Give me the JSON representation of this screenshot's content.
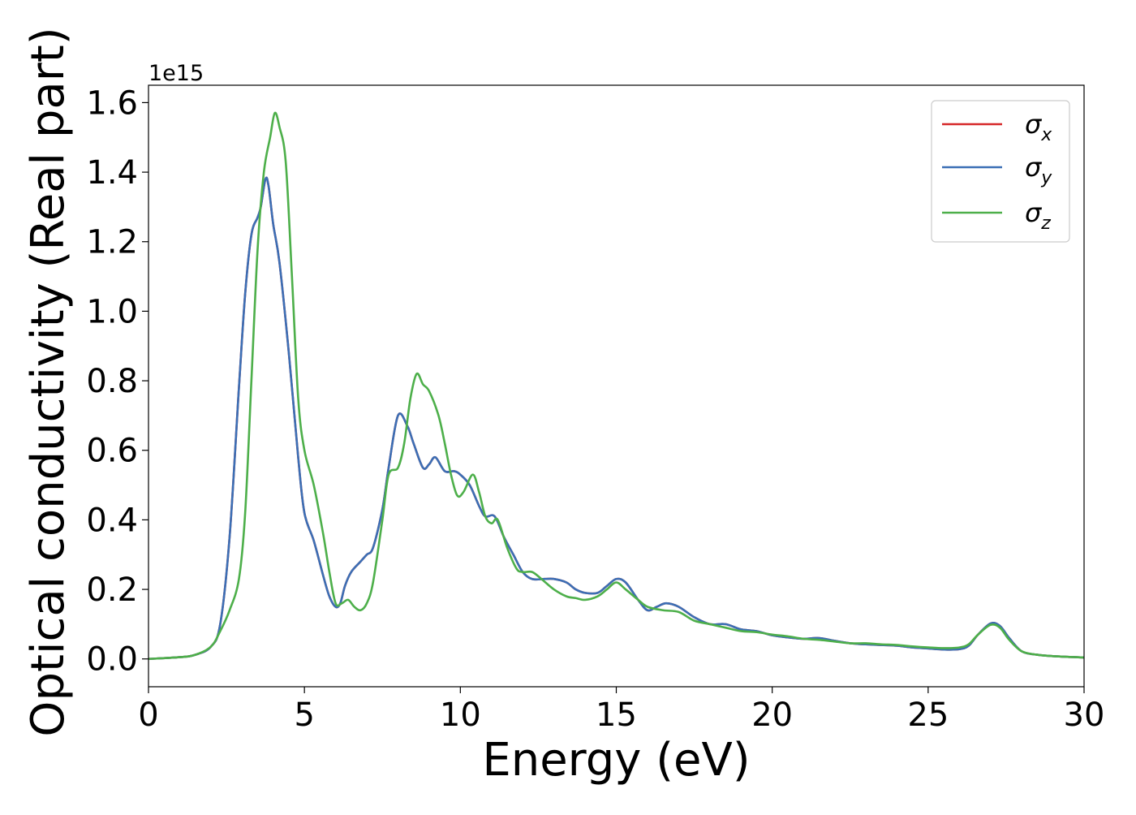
{
  "chart_data": {
    "type": "line",
    "xlabel": "Energy (eV)",
    "ylabel": "Optical conductivity (Real part)",
    "y_offset_text": "1e15",
    "y_scale": 1000000000000000.0,
    "xlim": [
      0,
      30
    ],
    "ylim": [
      -0.08,
      1.65
    ],
    "grid": false,
    "legend_position": "top-right",
    "x_ticks": [
      0,
      5,
      10,
      15,
      20,
      25,
      30
    ],
    "y_ticks": [
      0.0,
      0.2,
      0.4,
      0.6,
      0.8,
      1.0,
      1.2,
      1.4,
      1.6
    ],
    "x_tick_labels": [
      "0",
      "5",
      "10",
      "15",
      "20",
      "25",
      "30"
    ],
    "y_tick_labels": [
      "0.0",
      "0.2",
      "0.4",
      "0.6",
      "0.8",
      "1.0",
      "1.2",
      "1.4",
      "1.6"
    ],
    "series": [
      {
        "name": "σx",
        "legend_main": "σ",
        "legend_sub": "x",
        "color": "#d62728",
        "points": [
          [
            0,
            0.0
          ],
          [
            1.0,
            0.005
          ],
          [
            1.5,
            0.012
          ],
          [
            2.0,
            0.035
          ],
          [
            2.3,
            0.1
          ],
          [
            2.6,
            0.35
          ],
          [
            2.9,
            0.78
          ],
          [
            3.1,
            1.05
          ],
          [
            3.3,
            1.22
          ],
          [
            3.5,
            1.27
          ],
          [
            3.6,
            1.3
          ],
          [
            3.75,
            1.38
          ],
          [
            3.85,
            1.36
          ],
          [
            4.0,
            1.25
          ],
          [
            4.2,
            1.14
          ],
          [
            4.5,
            0.88
          ],
          [
            4.8,
            0.58
          ],
          [
            5.0,
            0.42
          ],
          [
            5.3,
            0.34
          ],
          [
            5.6,
            0.24
          ],
          [
            5.8,
            0.18
          ],
          [
            6.0,
            0.15
          ],
          [
            6.15,
            0.16
          ],
          [
            6.3,
            0.21
          ],
          [
            6.5,
            0.25
          ],
          [
            6.8,
            0.28
          ],
          [
            7.0,
            0.3
          ],
          [
            7.2,
            0.32
          ],
          [
            7.5,
            0.43
          ],
          [
            7.7,
            0.55
          ],
          [
            8.0,
            0.7
          ],
          [
            8.3,
            0.67
          ],
          [
            8.5,
            0.62
          ],
          [
            8.8,
            0.55
          ],
          [
            9.0,
            0.56
          ],
          [
            9.2,
            0.58
          ],
          [
            9.5,
            0.54
          ],
          [
            9.8,
            0.54
          ],
          [
            10.0,
            0.53
          ],
          [
            10.3,
            0.5
          ],
          [
            10.6,
            0.44
          ],
          [
            10.8,
            0.41
          ],
          [
            11.1,
            0.41
          ],
          [
            11.4,
            0.35
          ],
          [
            11.7,
            0.3
          ],
          [
            12.0,
            0.25
          ],
          [
            12.3,
            0.23
          ],
          [
            12.7,
            0.23
          ],
          [
            13.0,
            0.23
          ],
          [
            13.4,
            0.22
          ],
          [
            13.7,
            0.2
          ],
          [
            14.0,
            0.19
          ],
          [
            14.4,
            0.19
          ],
          [
            14.7,
            0.21
          ],
          [
            15.0,
            0.23
          ],
          [
            15.3,
            0.22
          ],
          [
            15.7,
            0.17
          ],
          [
            16.0,
            0.14
          ],
          [
            16.3,
            0.15
          ],
          [
            16.6,
            0.16
          ],
          [
            17.0,
            0.15
          ],
          [
            17.5,
            0.12
          ],
          [
            18.0,
            0.1
          ],
          [
            18.5,
            0.1
          ],
          [
            19.0,
            0.085
          ],
          [
            19.5,
            0.08
          ],
          [
            20.0,
            0.068
          ],
          [
            20.5,
            0.062
          ],
          [
            21.0,
            0.058
          ],
          [
            21.5,
            0.06
          ],
          [
            22.0,
            0.052
          ],
          [
            22.5,
            0.045
          ],
          [
            23.0,
            0.042
          ],
          [
            23.5,
            0.04
          ],
          [
            24.0,
            0.038
          ],
          [
            24.5,
            0.033
          ],
          [
            25.0,
            0.03
          ],
          [
            25.5,
            0.027
          ],
          [
            26.0,
            0.028
          ],
          [
            26.3,
            0.038
          ],
          [
            26.6,
            0.07
          ],
          [
            27.0,
            0.102
          ],
          [
            27.3,
            0.095
          ],
          [
            27.6,
            0.06
          ],
          [
            28.0,
            0.022
          ],
          [
            28.5,
            0.012
          ],
          [
            29.0,
            0.008
          ],
          [
            30.0,
            0.004
          ]
        ]
      },
      {
        "name": "σy",
        "legend_main": "σ",
        "legend_sub": "y",
        "color": "#3b6fb5",
        "points": [
          [
            0,
            0.0
          ],
          [
            1.0,
            0.005
          ],
          [
            1.5,
            0.012
          ],
          [
            2.0,
            0.035
          ],
          [
            2.3,
            0.1
          ],
          [
            2.6,
            0.35
          ],
          [
            2.9,
            0.78
          ],
          [
            3.1,
            1.05
          ],
          [
            3.3,
            1.22
          ],
          [
            3.5,
            1.27
          ],
          [
            3.6,
            1.3
          ],
          [
            3.75,
            1.38
          ],
          [
            3.85,
            1.36
          ],
          [
            4.0,
            1.25
          ],
          [
            4.2,
            1.14
          ],
          [
            4.5,
            0.88
          ],
          [
            4.8,
            0.58
          ],
          [
            5.0,
            0.42
          ],
          [
            5.3,
            0.34
          ],
          [
            5.6,
            0.24
          ],
          [
            5.8,
            0.18
          ],
          [
            6.0,
            0.15
          ],
          [
            6.15,
            0.16
          ],
          [
            6.3,
            0.21
          ],
          [
            6.5,
            0.25
          ],
          [
            6.8,
            0.28
          ],
          [
            7.0,
            0.3
          ],
          [
            7.2,
            0.32
          ],
          [
            7.5,
            0.43
          ],
          [
            7.7,
            0.55
          ],
          [
            8.0,
            0.7
          ],
          [
            8.3,
            0.67
          ],
          [
            8.5,
            0.62
          ],
          [
            8.8,
            0.55
          ],
          [
            9.0,
            0.56
          ],
          [
            9.2,
            0.58
          ],
          [
            9.5,
            0.54
          ],
          [
            9.8,
            0.54
          ],
          [
            10.0,
            0.53
          ],
          [
            10.3,
            0.5
          ],
          [
            10.6,
            0.44
          ],
          [
            10.8,
            0.41
          ],
          [
            11.1,
            0.41
          ],
          [
            11.4,
            0.35
          ],
          [
            11.7,
            0.3
          ],
          [
            12.0,
            0.25
          ],
          [
            12.3,
            0.23
          ],
          [
            12.7,
            0.23
          ],
          [
            13.0,
            0.23
          ],
          [
            13.4,
            0.22
          ],
          [
            13.7,
            0.2
          ],
          [
            14.0,
            0.19
          ],
          [
            14.4,
            0.19
          ],
          [
            14.7,
            0.21
          ],
          [
            15.0,
            0.23
          ],
          [
            15.3,
            0.22
          ],
          [
            15.7,
            0.17
          ],
          [
            16.0,
            0.14
          ],
          [
            16.3,
            0.15
          ],
          [
            16.6,
            0.16
          ],
          [
            17.0,
            0.15
          ],
          [
            17.5,
            0.12
          ],
          [
            18.0,
            0.1
          ],
          [
            18.5,
            0.1
          ],
          [
            19.0,
            0.085
          ],
          [
            19.5,
            0.08
          ],
          [
            20.0,
            0.068
          ],
          [
            20.5,
            0.062
          ],
          [
            21.0,
            0.058
          ],
          [
            21.5,
            0.06
          ],
          [
            22.0,
            0.052
          ],
          [
            22.5,
            0.045
          ],
          [
            23.0,
            0.042
          ],
          [
            23.5,
            0.04
          ],
          [
            24.0,
            0.038
          ],
          [
            24.5,
            0.033
          ],
          [
            25.0,
            0.03
          ],
          [
            25.5,
            0.027
          ],
          [
            26.0,
            0.028
          ],
          [
            26.3,
            0.038
          ],
          [
            26.6,
            0.07
          ],
          [
            27.0,
            0.102
          ],
          [
            27.3,
            0.095
          ],
          [
            27.6,
            0.06
          ],
          [
            28.0,
            0.022
          ],
          [
            28.5,
            0.012
          ],
          [
            29.0,
            0.008
          ],
          [
            30.0,
            0.004
          ]
        ]
      },
      {
        "name": "σz",
        "legend_main": "σ",
        "legend_sub": "z",
        "color": "#4daf4a",
        "points": [
          [
            0,
            0.0
          ],
          [
            1.0,
            0.005
          ],
          [
            1.5,
            0.012
          ],
          [
            2.0,
            0.035
          ],
          [
            2.3,
            0.08
          ],
          [
            2.6,
            0.14
          ],
          [
            2.9,
            0.23
          ],
          [
            3.1,
            0.42
          ],
          [
            3.3,
            0.8
          ],
          [
            3.5,
            1.18
          ],
          [
            3.7,
            1.4
          ],
          [
            3.9,
            1.5
          ],
          [
            4.05,
            1.57
          ],
          [
            4.2,
            1.53
          ],
          [
            4.4,
            1.43
          ],
          [
            4.6,
            1.1
          ],
          [
            4.8,
            0.75
          ],
          [
            5.0,
            0.6
          ],
          [
            5.3,
            0.5
          ],
          [
            5.6,
            0.36
          ],
          [
            5.8,
            0.25
          ],
          [
            6.0,
            0.16
          ],
          [
            6.2,
            0.16
          ],
          [
            6.4,
            0.17
          ],
          [
            6.6,
            0.15
          ],
          [
            6.8,
            0.14
          ],
          [
            7.0,
            0.16
          ],
          [
            7.2,
            0.22
          ],
          [
            7.5,
            0.4
          ],
          [
            7.7,
            0.53
          ],
          [
            8.0,
            0.55
          ],
          [
            8.2,
            0.62
          ],
          [
            8.4,
            0.75
          ],
          [
            8.6,
            0.82
          ],
          [
            8.8,
            0.79
          ],
          [
            9.0,
            0.77
          ],
          [
            9.3,
            0.7
          ],
          [
            9.5,
            0.62
          ],
          [
            9.7,
            0.53
          ],
          [
            9.9,
            0.47
          ],
          [
            10.1,
            0.48
          ],
          [
            10.4,
            0.53
          ],
          [
            10.6,
            0.48
          ],
          [
            10.8,
            0.41
          ],
          [
            11.0,
            0.39
          ],
          [
            11.2,
            0.4
          ],
          [
            11.5,
            0.32
          ],
          [
            11.8,
            0.26
          ],
          [
            12.0,
            0.25
          ],
          [
            12.3,
            0.25
          ],
          [
            12.6,
            0.23
          ],
          [
            13.0,
            0.2
          ],
          [
            13.4,
            0.18
          ],
          [
            13.7,
            0.175
          ],
          [
            14.0,
            0.17
          ],
          [
            14.4,
            0.18
          ],
          [
            14.7,
            0.2
          ],
          [
            15.0,
            0.22
          ],
          [
            15.3,
            0.2
          ],
          [
            15.7,
            0.17
          ],
          [
            16.0,
            0.15
          ],
          [
            16.5,
            0.14
          ],
          [
            17.0,
            0.135
          ],
          [
            17.5,
            0.11
          ],
          [
            18.0,
            0.1
          ],
          [
            18.5,
            0.09
          ],
          [
            19.0,
            0.08
          ],
          [
            19.5,
            0.077
          ],
          [
            20.0,
            0.07
          ],
          [
            20.5,
            0.065
          ],
          [
            21.0,
            0.058
          ],
          [
            21.5,
            0.055
          ],
          [
            22.0,
            0.05
          ],
          [
            22.5,
            0.045
          ],
          [
            23.0,
            0.045
          ],
          [
            23.5,
            0.042
          ],
          [
            24.0,
            0.04
          ],
          [
            24.5,
            0.036
          ],
          [
            25.0,
            0.033
          ],
          [
            25.5,
            0.031
          ],
          [
            26.0,
            0.033
          ],
          [
            26.3,
            0.042
          ],
          [
            26.6,
            0.07
          ],
          [
            27.0,
            0.098
          ],
          [
            27.3,
            0.09
          ],
          [
            27.6,
            0.055
          ],
          [
            28.0,
            0.022
          ],
          [
            28.5,
            0.012
          ],
          [
            29.0,
            0.008
          ],
          [
            30.0,
            0.004
          ]
        ]
      }
    ]
  }
}
